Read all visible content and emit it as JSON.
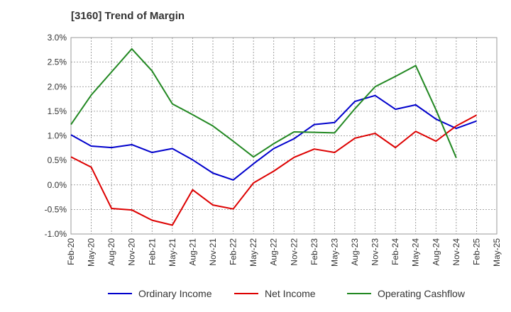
{
  "chart_data": {
    "type": "line",
    "title": "[3160]  Trend of Margin",
    "categories": [
      "Feb-20",
      "May-20",
      "Aug-20",
      "Nov-20",
      "Feb-21",
      "May-21",
      "Aug-21",
      "Nov-21",
      "Feb-22",
      "May-22",
      "Aug-22",
      "Nov-22",
      "Feb-23",
      "May-23",
      "Aug-23",
      "Nov-23",
      "Feb-24",
      "May-24",
      "Aug-24",
      "Nov-24",
      "Feb-25",
      "May-25"
    ],
    "ylim": [
      -1.0,
      3.0
    ],
    "yticks": [
      -1.0,
      -0.5,
      0.0,
      0.5,
      1.0,
      1.5,
      2.0,
      2.5,
      3.0
    ],
    "ytick_labels": [
      "-1.0%",
      "-0.5%",
      "0.0%",
      "0.5%",
      "1.0%",
      "1.5%",
      "2.0%",
      "2.5%",
      "3.0%"
    ],
    "grid": true,
    "legend_position": "bottom",
    "series": [
      {
        "name": "Ordinary Income",
        "color": "#0000cc",
        "values": [
          1.02,
          0.79,
          0.76,
          0.82,
          0.66,
          0.74,
          0.51,
          0.24,
          0.1,
          0.43,
          0.74,
          0.94,
          1.23,
          1.27,
          1.7,
          1.82,
          1.54,
          1.63,
          1.34,
          1.15,
          1.3,
          null
        ]
      },
      {
        "name": "Net Income",
        "color": "#dd0000",
        "values": [
          0.57,
          0.36,
          -0.48,
          -0.51,
          -0.72,
          -0.82,
          -0.1,
          -0.41,
          -0.49,
          0.04,
          0.28,
          0.56,
          0.73,
          0.66,
          0.95,
          1.05,
          0.76,
          1.09,
          0.89,
          1.2,
          1.42,
          null
        ]
      },
      {
        "name": "Operating Cashflow",
        "color": "#228822",
        "values": [
          1.23,
          1.83,
          2.3,
          2.77,
          2.32,
          1.65,
          1.43,
          1.2,
          0.89,
          0.57,
          0.84,
          1.08,
          1.07,
          1.06,
          1.55,
          2.0,
          2.21,
          2.43,
          1.53,
          0.55,
          null,
          null
        ]
      }
    ]
  }
}
